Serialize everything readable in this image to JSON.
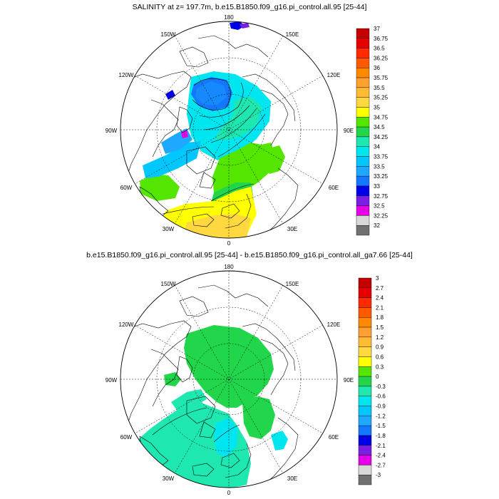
{
  "panels": [
    {
      "title": "SALINITY at z= 197.7m, b.e15.B1850.f09_g16.pi_control.all.95 [25-44]",
      "labels": {
        "top": "180",
        "upper_left": "150W",
        "upper_right": "150E",
        "mid_upper_left": "120W",
        "mid_upper_right": "120E",
        "left": "90W",
        "right": "90E",
        "lower_left": "60W",
        "lower_right": "60E",
        "bottom_left": "30W",
        "bottom_right": "30E",
        "bottom": "0"
      },
      "colorbar": {
        "levels": [
          "37",
          "36.75",
          "36.5",
          "36.25",
          "36",
          "35.75",
          "35.5",
          "35.25",
          "35",
          "34.75",
          "34.5",
          "34.25",
          "34",
          "33.75",
          "33.5",
          "33.25",
          "33",
          "32.75",
          "32.5",
          "32.25",
          "32"
        ],
        "colors": [
          "#c40000",
          "#e60000",
          "#ff2a00",
          "#ff5a00",
          "#ff8a00",
          "#ffa030",
          "#ffbc33",
          "#ffd840",
          "#ffff00",
          "#55e600",
          "#22d64b",
          "#1ee8b0",
          "#00e6f0",
          "#00c8ff",
          "#1ea8ff",
          "#1478ff",
          "#0000e6",
          "#7a1ee6",
          "#e600e6",
          "#d9d9d9",
          "#707070"
        ]
      }
    },
    {
      "title": "b.e15.B1850.f09_g16.pi_control.all.95 [25-44] - b.e15.B1850.f09_g16.pi_control.all_ga7.66 [25-44]",
      "labels": {
        "top": "180",
        "upper_left": "150W",
        "upper_right": "150E",
        "mid_upper_left": "120W",
        "mid_upper_right": "120E",
        "left": "90W",
        "right": "90E",
        "lower_left": "60W",
        "lower_right": "60E",
        "bottom_left": "30W",
        "bottom_right": "30E",
        "bottom": "0"
      },
      "colorbar": {
        "levels": [
          "3",
          "2.7",
          "2.4",
          "2.1",
          "1.8",
          "1.5",
          "1.2",
          "0.9",
          "0.6",
          "0.3",
          "0",
          "-0.3",
          "-0.6",
          "-0.9",
          "-1.2",
          "-1.5",
          "-1.8",
          "-2.1",
          "-2.4",
          "-2.7",
          "-3"
        ],
        "colors": [
          "#c40000",
          "#e60000",
          "#ff2a00",
          "#ff5a00",
          "#ff8a00",
          "#ffa030",
          "#ffbc33",
          "#ffd840",
          "#ffff00",
          "#55e600",
          "#22d64b",
          "#1ee8b0",
          "#00e6f0",
          "#00c8ff",
          "#1ea8ff",
          "#1478ff",
          "#0000e6",
          "#7a1ee6",
          "#e600e6",
          "#d9d9d9",
          "#707070"
        ]
      }
    }
  ]
}
